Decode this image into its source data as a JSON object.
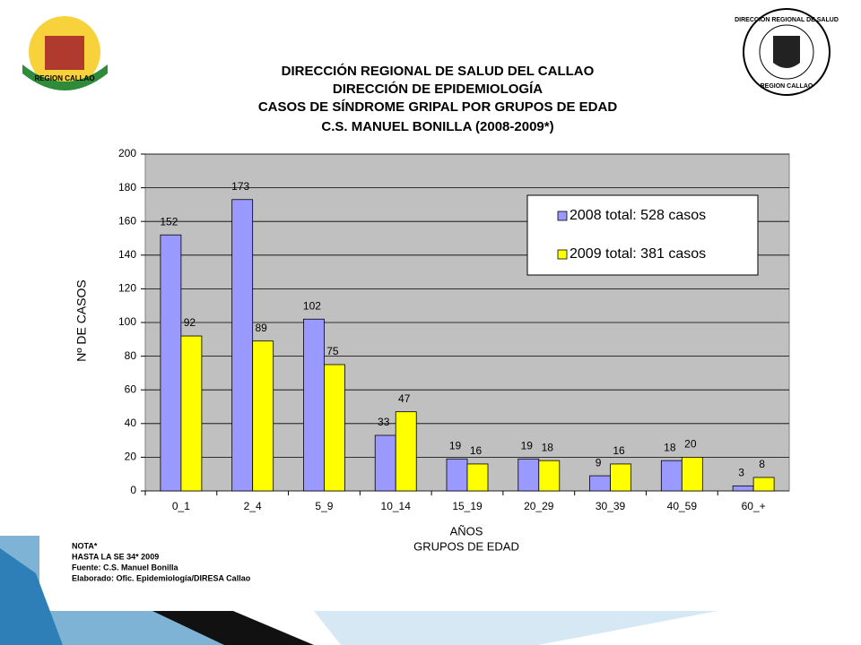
{
  "logos": [
    "REGION CALLAO",
    "DIRECCION REGIONAL DE SALUD",
    "REGION CALLAO"
  ],
  "notes": [
    "NOTA*",
    "HASTA LA  SE  34*  2009",
    "Fuente: C.S. Manuel Bonilla",
    "Elaborado: Ofic. Epidemiología/DIRESA Callao"
  ],
  "chart_data": {
    "type": "bar",
    "title_lines": [
      "DIRECCIÓN REGIONAL DE SALUD DEL CALLAO",
      "DIRECCIÓN DE EPIDEMIOLOGÍA",
      "CASOS DE SÍNDROME GRIPAL POR GRUPOS DE EDAD",
      "C.S. MANUEL BONILLA (2008-2009*)"
    ],
    "ylabel": "Nº DE CASOS",
    "xlabel_lines": [
      "AÑOS",
      "GRUPOS DE EDAD"
    ],
    "categories": [
      "0_1",
      "2_4",
      "5_9",
      "10_14",
      "15_19",
      "20_29",
      "30_39",
      "40_59",
      "60_+"
    ],
    "series": [
      {
        "name": "2008 total: 528 casos",
        "color": "#9999ff",
        "values": [
          152,
          173,
          102,
          33,
          19,
          19,
          9,
          18,
          3
        ]
      },
      {
        "name": "2009 total: 381 casos",
        "color": "#ffff00",
        "values": [
          92,
          89,
          75,
          47,
          16,
          18,
          16,
          20,
          8
        ]
      }
    ],
    "ylim": [
      0,
      200
    ],
    "yticks": [
      0,
      20,
      40,
      60,
      80,
      100,
      120,
      140,
      160,
      180,
      200
    ],
    "grid": true,
    "plot_background": "#c0c0c0",
    "legend": "upper right"
  }
}
